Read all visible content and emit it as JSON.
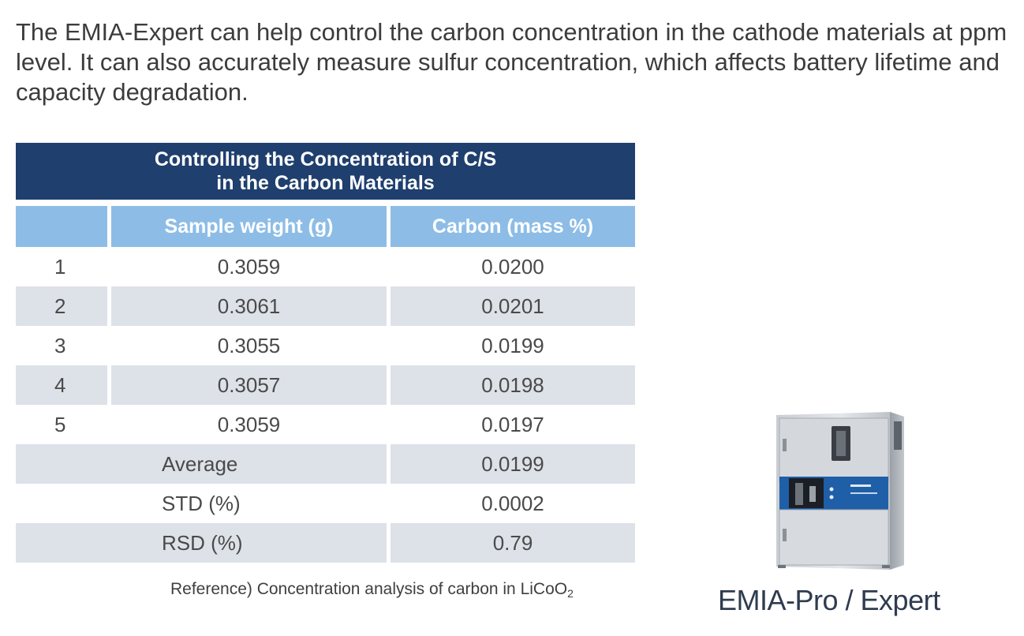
{
  "intro": "The EMIA-Expert can help control the carbon concentration in the cathode materials at ppm level. It can also accurately measure sulfur concentration, which affects battery lifetime and capacity degradation.",
  "table": {
    "title_line1": "Controlling the Concentration of C/S",
    "title_line2": "in the Carbon Materials",
    "headers": [
      "",
      "Sample weight (g)",
      "Carbon (mass %)"
    ],
    "rows": [
      {
        "no": "1",
        "weight": "0.3059",
        "carbon": "0.0200"
      },
      {
        "no": "2",
        "weight": "0.3061",
        "carbon": "0.0201"
      },
      {
        "no": "3",
        "weight": "0.3055",
        "carbon": "0.0199"
      },
      {
        "no": "4",
        "weight": "0.3057",
        "carbon": "0.0198"
      },
      {
        "no": "5",
        "weight": "0.3059",
        "carbon": "0.0197"
      }
    ],
    "summary": [
      {
        "label": "Average",
        "value": "0.0199"
      },
      {
        "label": "STD (%)",
        "value": "0.0002"
      },
      {
        "label": "RSD (%)",
        "value": "0.79"
      }
    ],
    "colors": {
      "title_bg": "#1f3f6e",
      "header_bg": "#8dbde6",
      "stripe_bg": "#dde2e8"
    }
  },
  "caption": {
    "main": "Reference) Concentration analysis of carbon in LiCoO",
    "subscript": "2"
  },
  "product": {
    "image_icon": "analyzer-instrument-photo",
    "label": "EMIA-Pro / Expert"
  }
}
